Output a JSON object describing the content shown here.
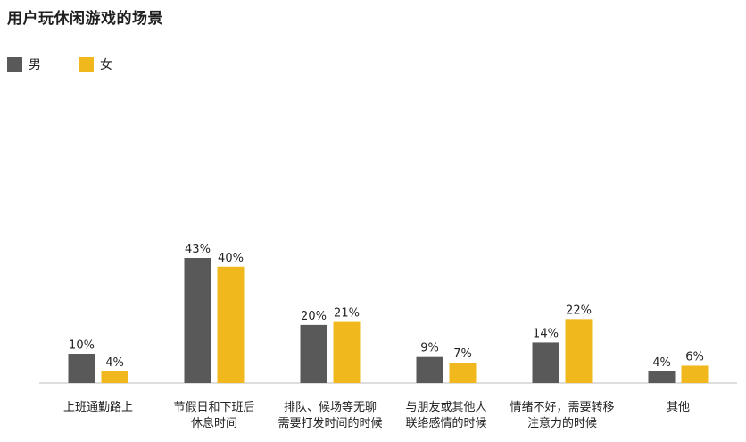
{
  "chart_data": {
    "type": "bar",
    "title": "用户玩休闲游戏的场景",
    "xlabel": "",
    "ylabel": "",
    "ylim": [
      0,
      50
    ],
    "grid": false,
    "legend_position": "top-left",
    "categories": [
      [
        "上班通勤路上"
      ],
      [
        "节假日和下班后",
        "休息时间"
      ],
      [
        "排队、候场等无聊",
        "需要打发时间的时候"
      ],
      [
        "与朋友或其他人",
        "联络感情的时候"
      ],
      [
        "情绪不好，需要转移",
        "注意力的时候"
      ],
      [
        "其他"
      ]
    ],
    "series": [
      {
        "name": "男",
        "color": "#595959",
        "values": [
          10,
          43,
          20,
          9,
          14,
          4
        ],
        "labels": [
          "10%",
          "43%",
          "20%",
          "9%",
          "14%",
          "4%"
        ]
      },
      {
        "name": "女",
        "color": "#f0b81c",
        "values": [
          4,
          40,
          21,
          7,
          22,
          6
        ],
        "labels": [
          "4%",
          "40%",
          "21%",
          "7%",
          "22%",
          "6%"
        ]
      }
    ]
  }
}
